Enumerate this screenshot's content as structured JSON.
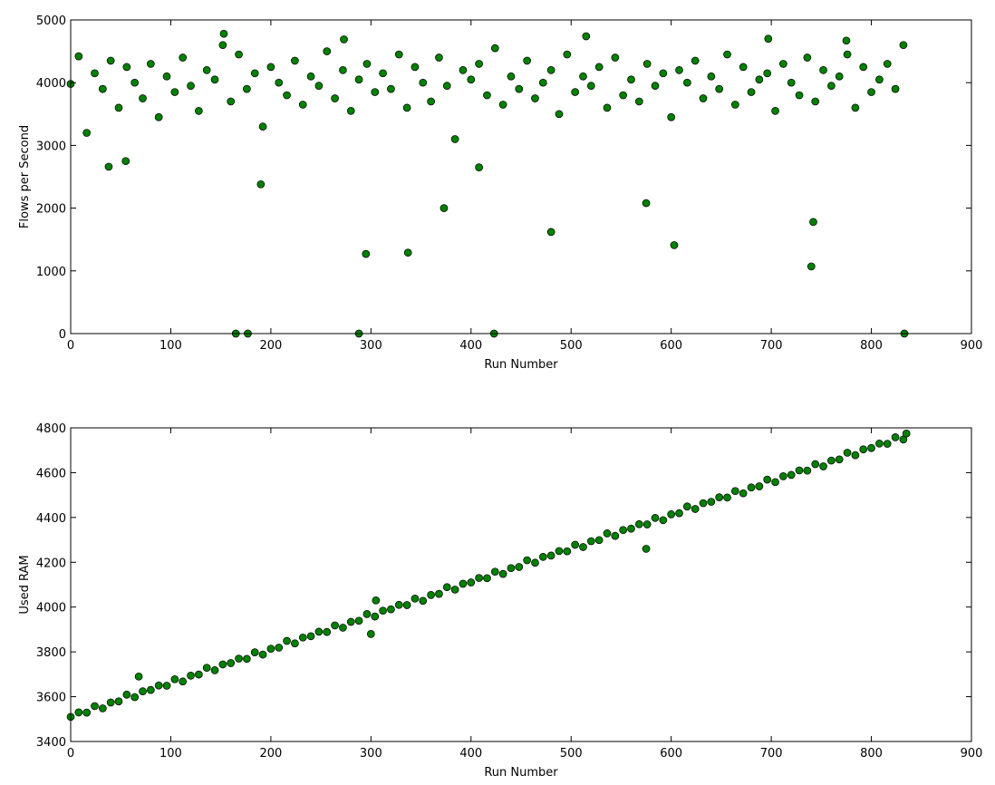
{
  "chart_data": [
    {
      "type": "scatter",
      "xlabel": "Run Number",
      "ylabel": "Flows per Second",
      "color": "#008000",
      "xlim": [
        0,
        900
      ],
      "xticks": [
        0,
        100,
        200,
        300,
        400,
        500,
        600,
        700,
        800,
        900
      ],
      "ylim": [
        0,
        5000
      ],
      "yticks": [
        0,
        1000,
        2000,
        3000,
        4000,
        5000
      ],
      "x": [
        0,
        8,
        16,
        24,
        32,
        40,
        48,
        56,
        64,
        72,
        80,
        88,
        96,
        104,
        112,
        120,
        128,
        136,
        144,
        152,
        160,
        168,
        176,
        184,
        192,
        200,
        208,
        216,
        224,
        232,
        240,
        248,
        256,
        264,
        272,
        280,
        288,
        296,
        304,
        312,
        320,
        328,
        336,
        344,
        352,
        360,
        368,
        376,
        384,
        392,
        400,
        408,
        416,
        424,
        432,
        440,
        448,
        456,
        464,
        472,
        480,
        488,
        496,
        504,
        512,
        520,
        528,
        536,
        544,
        552,
        560,
        568,
        576,
        584,
        592,
        600,
        608,
        616,
        624,
        632,
        640,
        648,
        656,
        664,
        672,
        680,
        688,
        696,
        704,
        712,
        720,
        728,
        736,
        744,
        752,
        760,
        768,
        776,
        784,
        792,
        800,
        808,
        816,
        824,
        832,
        38,
        55,
        165,
        177,
        190,
        288,
        295,
        337,
        373,
        408,
        423,
        480,
        575,
        603,
        740,
        742,
        833,
        153,
        515,
        697,
        273,
        775
      ],
      "values": [
        3980,
        4420,
        3200,
        4150,
        3900,
        4350,
        3600,
        4250,
        4000,
        3750,
        4300,
        3450,
        4100,
        3850,
        4400,
        3950,
        3550,
        4200,
        4050,
        4600,
        3700,
        4450,
        3900,
        4150,
        3300,
        4250,
        4000,
        3800,
        4350,
        3650,
        4100,
        3950,
        4500,
        3750,
        4200,
        3550,
        4050,
        4300,
        3850,
        4150,
        3900,
        4450,
        3600,
        4250,
        4000,
        3700,
        4400,
        3950,
        3100,
        4200,
        4050,
        4300,
        3800,
        4550,
        3650,
        4100,
        3900,
        4350,
        3750,
        4000,
        4200,
        3500,
        4450,
        3850,
        4100,
        3950,
        4250,
        3600,
        4400,
        3800,
        4050,
        3700,
        4300,
        3950,
        4150,
        3450,
        4200,
        4000,
        4350,
        3750,
        4100,
        3900,
        4450,
        3650,
        4250,
        3850,
        4050,
        4150,
        3550,
        4300,
        4000,
        3800,
        4400,
        3700,
        4200,
        3950,
        4100,
        4450,
        3600,
        4250,
        3850,
        4050,
        4300,
        3900,
        4600,
        2660,
        2750,
        0,
        0,
        2380,
        0,
        1270,
        1290,
        2000,
        2650,
        0,
        1620,
        2080,
        1410,
        1070,
        1780,
        0,
        4780,
        4740,
        4700,
        4690,
        4670
      ]
    },
    {
      "type": "scatter",
      "xlabel": "Run Number",
      "ylabel": "Used RAM",
      "color": "#008000",
      "xlim": [
        0,
        900
      ],
      "xticks": [
        0,
        100,
        200,
        300,
        400,
        500,
        600,
        700,
        800,
        900
      ],
      "ylim": [
        3400,
        4800
      ],
      "yticks": [
        3400,
        3600,
        3800,
        4000,
        4200,
        4400,
        4600,
        4800
      ],
      "x": [
        0,
        8,
        16,
        24,
        32,
        40,
        48,
        56,
        64,
        72,
        80,
        88,
        96,
        104,
        112,
        120,
        128,
        136,
        144,
        152,
        160,
        168,
        176,
        184,
        192,
        200,
        208,
        216,
        224,
        232,
        240,
        248,
        256,
        264,
        272,
        280,
        288,
        296,
        304,
        312,
        320,
        328,
        336,
        344,
        352,
        360,
        368,
        376,
        384,
        392,
        400,
        408,
        416,
        424,
        432,
        440,
        448,
        456,
        464,
        472,
        480,
        488,
        496,
        504,
        512,
        520,
        528,
        536,
        544,
        552,
        560,
        568,
        576,
        584,
        592,
        600,
        608,
        616,
        624,
        632,
        640,
        648,
        656,
        664,
        672,
        680,
        688,
        696,
        704,
        712,
        720,
        728,
        736,
        744,
        752,
        760,
        768,
        776,
        784,
        792,
        800,
        808,
        816,
        824,
        832,
        68,
        300,
        305,
        575,
        835
      ],
      "values": [
        3510,
        3530,
        3529,
        3558,
        3548,
        3574,
        3579,
        3609,
        3598,
        3624,
        3630,
        3650,
        3649,
        3678,
        3668,
        3694,
        3699,
        3729,
        3718,
        3744,
        3750,
        3770,
        3769,
        3798,
        3788,
        3814,
        3819,
        3849,
        3838,
        3864,
        3870,
        3890,
        3889,
        3918,
        3908,
        3934,
        3939,
        3969,
        3958,
        3984,
        3990,
        4010,
        4009,
        4038,
        4028,
        4054,
        4059,
        4089,
        4078,
        4104,
        4110,
        4130,
        4129,
        4158,
        4148,
        4174,
        4179,
        4209,
        4198,
        4224,
        4230,
        4250,
        4249,
        4278,
        4268,
        4294,
        4299,
        4329,
        4318,
        4344,
        4350,
        4370,
        4369,
        4398,
        4388,
        4414,
        4419,
        4449,
        4438,
        4464,
        4470,
        4490,
        4489,
        4518,
        4508,
        4534,
        4539,
        4569,
        4558,
        4584,
        4590,
        4610,
        4609,
        4638,
        4628,
        4654,
        4659,
        4689,
        4678,
        4704,
        4710,
        4730,
        4729,
        4758,
        4748,
        3690,
        3880,
        4030,
        4260,
        4775
      ]
    }
  ]
}
